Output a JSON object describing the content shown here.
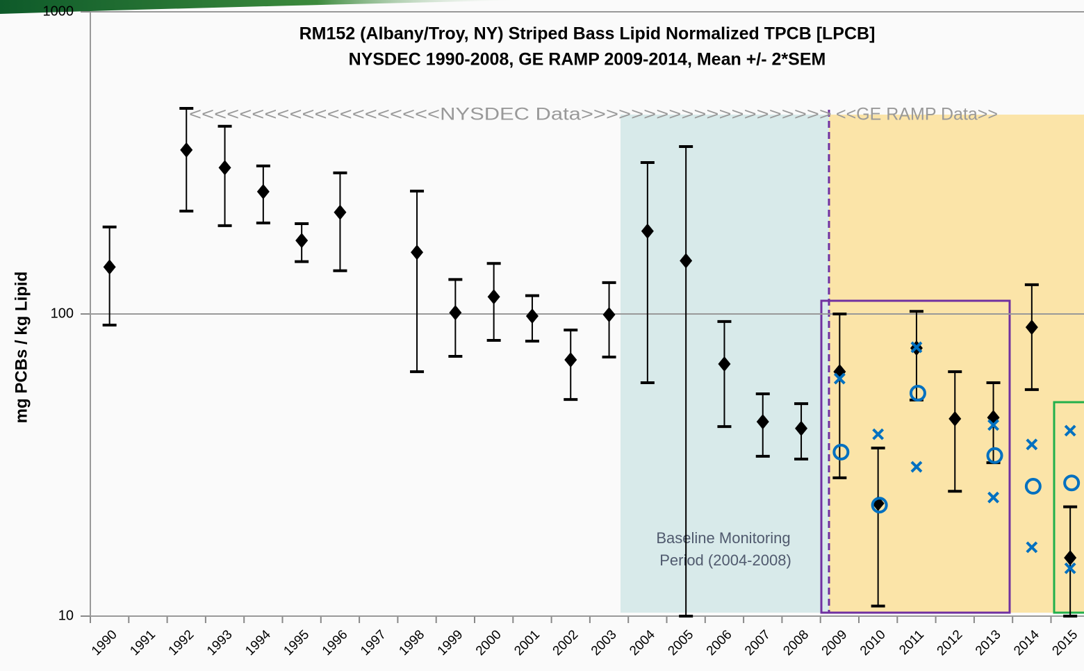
{
  "chart_data": {
    "type": "errorbar",
    "title": "RM152 (Albany/Troy, NY) Striped Bass Lipid Normalized TPCB [LPCB]",
    "subtitle": "NYSDEC 1990-2008, GE RAMP 2009-2014, Mean +/- 2*SEM",
    "ylabel": "mg PCBs / kg Lipid",
    "categories": [
      "1990",
      "1991",
      "1992",
      "1993",
      "1994",
      "1995",
      "1996",
      "1997",
      "1998",
      "1999",
      "2000",
      "2001",
      "2002",
      "2003",
      "2004",
      "2005",
      "2006",
      "2007",
      "2008",
      "2009",
      "2010",
      "2011",
      "2012",
      "2013",
      "2014",
      "2015"
    ],
    "series": [
      {
        "color": "#000000",
        "marker": "diamond",
        "values": [
          143,
          null,
          349,
          305,
          254,
          175,
          217,
          null,
          160,
          101,
          114,
          98.4,
          70.5,
          99.5,
          188,
          150,
          68.3,
          44.0,
          41.8,
          64.4,
          23.6,
          77.1,
          45.0,
          45.4,
          90.4,
          15.6
        ],
        "lower": [
          91.9,
          null,
          219,
          196,
          200,
          149,
          139,
          null,
          64.4,
          72.4,
          81.8,
          81.3,
          52.1,
          72.0,
          59.2,
          10,
          42.4,
          33.8,
          33.1,
          28.7,
          10.8,
          51.9,
          25.9,
          32.2,
          56.2,
          10
        ],
        "upper": [
          194,
          null,
          479,
          418,
          309,
          199,
          293,
          null,
          255,
          130,
          147,
          115,
          88.5,
          127,
          317,
          358,
          94.4,
          54.4,
          50.5,
          100,
          36.0,
          102,
          64.4,
          59.2,
          125,
          23.0
        ]
      },
      {
        "color": "#0070c0",
        "marker": "circle",
        "values": [
          null,
          null,
          null,
          null,
          null,
          null,
          null,
          null,
          null,
          null,
          null,
          null,
          null,
          null,
          null,
          null,
          null,
          null,
          null,
          34.9,
          23.3,
          54.7,
          null,
          34.0,
          26.9,
          27.6
        ]
      },
      {
        "color": "#0070c0",
        "marker": "x",
        "values": [
          null,
          null,
          null,
          null,
          null,
          null,
          null,
          null,
          null,
          null,
          null,
          null,
          null,
          null,
          null,
          null,
          null,
          null,
          null,
          61.1,
          40.0,
          77.6,
          null,
          42.9,
          37.0,
          41.1
        ]
      },
      {
        "color": "#0070c0",
        "marker": "x",
        "values": [
          null,
          null,
          null,
          null,
          null,
          null,
          null,
          null,
          null,
          null,
          null,
          null,
          null,
          null,
          null,
          null,
          null,
          null,
          null,
          null,
          null,
          31.2,
          null,
          24.7,
          16.9,
          14.4
        ]
      }
    ],
    "ylim": [
      10,
      1000
    ],
    "yticks": [
      10,
      100,
      1000
    ],
    "ylog": true,
    "grid": true,
    "annotations": [
      "<<<<<<<<<<<<<<<<<<<<NYSDEC Data>>>>>>>>>>>>>>>>>>>>",
      "<<GE RAMP Data>>",
      "Baseline Monitoring",
      "Period (2004-2008)"
    ]
  }
}
